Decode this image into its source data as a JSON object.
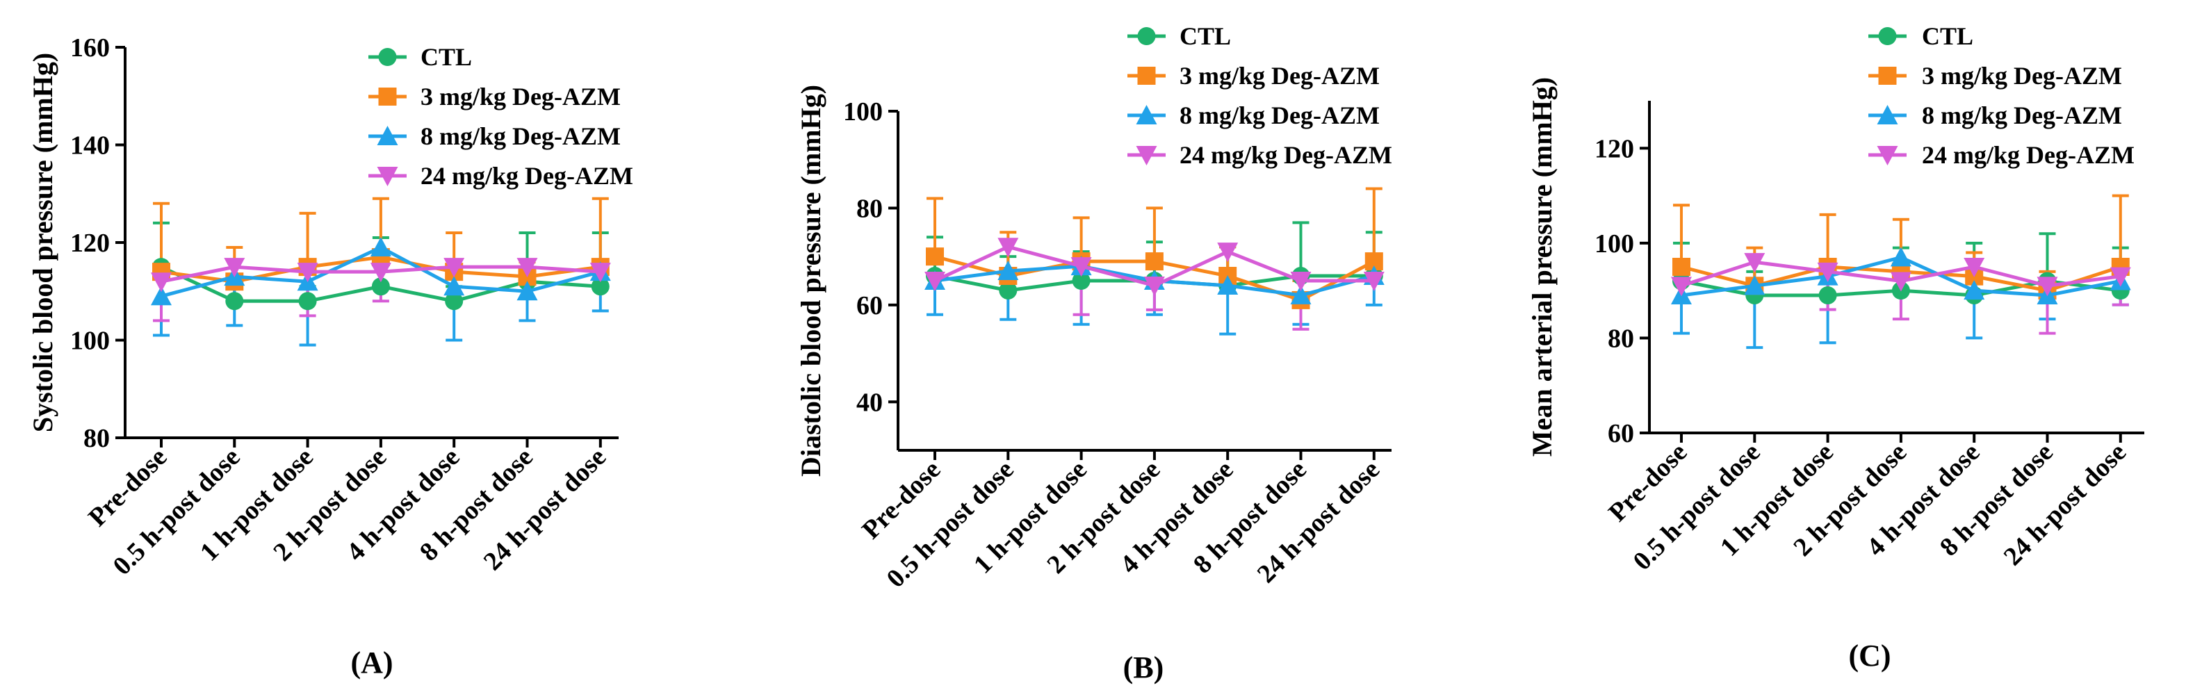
{
  "chart_data": [
    {
      "type": "line",
      "panel_label": "(A)",
      "ylabel": "Systolic blood pressure (mmHg)",
      "xlabel": "",
      "ylim": [
        80,
        160
      ],
      "yticks": [
        "80",
        "100",
        "120",
        "140",
        "160"
      ],
      "categories": [
        "Pre-dose",
        "0.5 h-post dose",
        "1 h-post dose",
        "2 h-post dose",
        "4 h-post dose",
        "8 h-post dose",
        "24 h-post dose"
      ],
      "legend_position": "top",
      "series": [
        {
          "name": "CTL",
          "color": "#1fb26b",
          "marker": "circle",
          "values": [
            115,
            108,
            108,
            111,
            108,
            112,
            111
          ],
          "err_up": [
            9,
            3,
            3,
            10,
            3,
            10,
            11
          ],
          "err_down": [
            0,
            0,
            0,
            0,
            0,
            0,
            0
          ]
        },
        {
          "name": "3 mg/kg Deg-AZM",
          "color": "#f7871b",
          "marker": "square",
          "values": [
            114,
            112,
            115,
            117,
            114,
            113,
            115
          ],
          "err_up": [
            14,
            7,
            11,
            12,
            8,
            3,
            14
          ],
          "err_down": [
            0,
            0,
            0,
            0,
            0,
            0,
            0
          ]
        },
        {
          "name": "8 mg/kg Deg-AZM",
          "color": "#21a2e9",
          "marker": "triangle-up",
          "values": [
            109,
            113,
            112,
            119,
            111,
            110,
            114
          ],
          "err_up": [
            0,
            0,
            0,
            0,
            0,
            0,
            0
          ],
          "err_down": [
            8,
            10,
            13,
            0,
            11,
            6,
            8
          ]
        },
        {
          "name": "24 mg/kg Deg-AZM",
          "color": "#d65cd6",
          "marker": "triangle-down",
          "values": [
            112,
            115,
            114,
            114,
            115,
            115,
            114
          ],
          "err_up": [
            0,
            0,
            0,
            0,
            0,
            0,
            0
          ],
          "err_down": [
            8,
            0,
            9,
            6,
            0,
            0,
            0
          ]
        }
      ]
    },
    {
      "type": "line",
      "panel_label": "(B)",
      "ylabel": "Diastolic blood pressure (mmHg)",
      "xlabel": "",
      "ylim": [
        30,
        100
      ],
      "yticks": [
        "40",
        "60",
        "80",
        "100"
      ],
      "categories": [
        "Pre-dose",
        "0.5 h-post dose",
        "1 h-post dose",
        "2 h-post dose",
        "4 h-post dose",
        "8 h-post dose",
        "24 h-post dose"
      ],
      "legend_position": "top-right",
      "series": [
        {
          "name": "CTL",
          "color": "#1fb26b",
          "marker": "circle",
          "values": [
            66,
            63,
            65,
            65,
            64,
            66,
            66
          ],
          "err_up": [
            8,
            7,
            6,
            8,
            8,
            11,
            9
          ],
          "err_down": [
            0,
            0,
            0,
            0,
            0,
            0,
            0
          ]
        },
        {
          "name": "3 mg/kg Deg-AZM",
          "color": "#f7871b",
          "marker": "square",
          "values": [
            70,
            66,
            69,
            69,
            66,
            61,
            69
          ],
          "err_up": [
            12,
            9,
            9,
            11,
            6,
            4,
            15
          ],
          "err_down": [
            0,
            0,
            0,
            0,
            0,
            0,
            0
          ]
        },
        {
          "name": "8 mg/kg Deg-AZM",
          "color": "#21a2e9",
          "marker": "triangle-up",
          "values": [
            65,
            67,
            68,
            65,
            64,
            62,
            66
          ],
          "err_up": [
            0,
            0,
            0,
            0,
            0,
            0,
            0
          ],
          "err_down": [
            7,
            10,
            12,
            7,
            10,
            6,
            6
          ]
        },
        {
          "name": "24 mg/kg Deg-AZM",
          "color": "#d65cd6",
          "marker": "triangle-down",
          "values": [
            65,
            72,
            68,
            64,
            71,
            65,
            65
          ],
          "err_up": [
            0,
            0,
            0,
            0,
            0,
            0,
            0
          ],
          "err_down": [
            0,
            0,
            10,
            5,
            0,
            10,
            0
          ]
        }
      ]
    },
    {
      "type": "line",
      "panel_label": "(C)",
      "ylabel": "Mean arterial pressure (mmHg)",
      "xlabel": "",
      "ylim": [
        60,
        130
      ],
      "yticks": [
        "60",
        "80",
        "100",
        "120"
      ],
      "categories": [
        "Pre-dose",
        "0.5 h-post dose",
        "1 h-post dose",
        "2 h-post dose",
        "4 h-post dose",
        "8 h-post dose",
        "24 h-post dose"
      ],
      "legend_position": "top-right",
      "series": [
        {
          "name": "CTL",
          "color": "#1fb26b",
          "marker": "circle",
          "values": [
            92,
            89,
            89,
            90,
            89,
            92,
            90
          ],
          "err_up": [
            8,
            5,
            6,
            9,
            11,
            10,
            9
          ],
          "err_down": [
            0,
            0,
            0,
            0,
            0,
            0,
            0
          ]
        },
        {
          "name": "3 mg/kg Deg-AZM",
          "color": "#f7871b",
          "marker": "square",
          "values": [
            95,
            91,
            95,
            94,
            93,
            90,
            95
          ],
          "err_up": [
            13,
            8,
            11,
            11,
            5,
            4,
            15
          ],
          "err_down": [
            0,
            0,
            0,
            0,
            0,
            0,
            0
          ]
        },
        {
          "name": "8 mg/kg Deg-AZM",
          "color": "#21a2e9",
          "marker": "triangle-up",
          "values": [
            89,
            91,
            93,
            97,
            90,
            89,
            92
          ],
          "err_up": [
            0,
            0,
            0,
            0,
            0,
            0,
            0
          ],
          "err_down": [
            8,
            13,
            14,
            0,
            10,
            5,
            5
          ]
        },
        {
          "name": "24 mg/kg Deg-AZM",
          "color": "#d65cd6",
          "marker": "triangle-down",
          "values": [
            91,
            96,
            94,
            92,
            95,
            91,
            93
          ],
          "err_up": [
            0,
            0,
            0,
            0,
            0,
            0,
            0
          ],
          "err_down": [
            0,
            0,
            8,
            8,
            0,
            10,
            6
          ]
        }
      ]
    }
  ]
}
